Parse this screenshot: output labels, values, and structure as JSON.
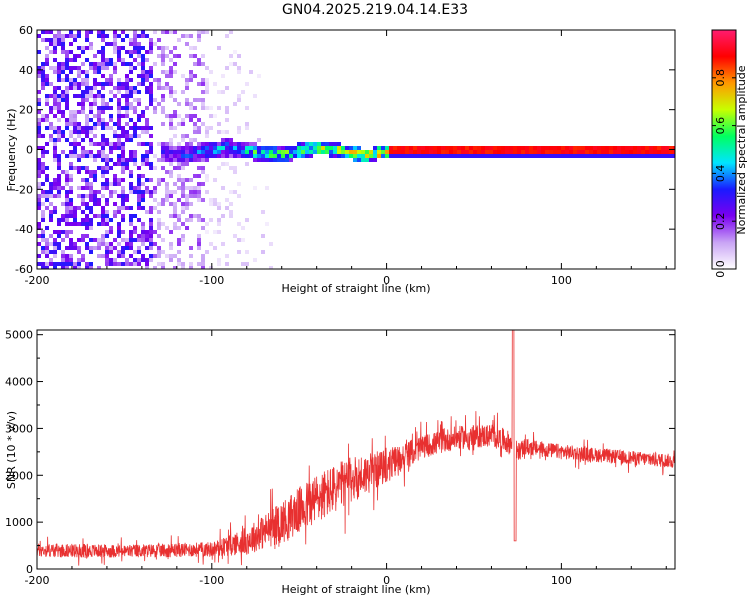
{
  "chart_data": [
    {
      "type": "heatmap",
      "title": "GN04.2025.219.04.14.E33",
      "xlabel": "Height of straight line (km)",
      "ylabel": "Frequency (Hz)",
      "xlim": [
        -200,
        165
      ],
      "ylim": [
        -60,
        60
      ],
      "x_ticks": [
        -200,
        -100,
        0,
        100
      ],
      "y_ticks": [
        60,
        40,
        20,
        0,
        -20,
        -40,
        -60
      ],
      "colorbar": {
        "label": "Normalized spectral amplitude",
        "range": [
          0.0,
          1.0
        ],
        "ticks": [
          0.0,
          0.2,
          0.4,
          0.6,
          0.8
        ],
        "colors": [
          "#ffffff",
          "#c9a4f5",
          "#7a00f0",
          "#1a1aff",
          "#00e5ff",
          "#00ff60",
          "#c8ff00",
          "#ff9900",
          "#ff0000",
          "#ff1c70"
        ]
      },
      "features": {
        "noise_region_x": [
          -200,
          -80
        ],
        "noise_intensity": [
          0.35,
          0.25,
          0.1
        ],
        "signal_band_x": [
          -130,
          165
        ],
        "signal_center_freq": 0,
        "signal_amplitude_strong_from_x": 0
      },
      "grid": false
    },
    {
      "type": "line",
      "title": "",
      "xlabel": "Height of straight line (km)",
      "ylabel": "SNR (10 * v/v)",
      "xlim": [
        -200,
        165
      ],
      "ylim": [
        0,
        5100
      ],
      "x_ticks": [
        -200,
        -100,
        0,
        100
      ],
      "y_ticks": [
        0,
        1000,
        2000,
        3000,
        4000,
        5000
      ],
      "series": [
        {
          "color": "#e83030",
          "trend_x": [
            -200,
            -150,
            -100,
            -80,
            -60,
            -40,
            -20,
            0,
            20,
            40,
            60,
            70,
            73,
            75,
            80,
            100,
            130,
            165
          ],
          "trend_y": [
            400,
            380,
            420,
            600,
            1000,
            1500,
            1900,
            2200,
            2600,
            2800,
            2850,
            2700,
            2600,
            2500,
            2600,
            2500,
            2400,
            2300
          ],
          "noise_amp": [
            300,
            280,
            320,
            600,
            900,
            1100,
            1000,
            700,
            500,
            500,
            500,
            500,
            500,
            400,
            350,
            320,
            300,
            300
          ],
          "spikes": [
            {
              "x": 72.5,
              "y": 5100
            },
            {
              "x": 73.5,
              "y": 600
            }
          ]
        }
      ],
      "grid": false
    }
  ]
}
